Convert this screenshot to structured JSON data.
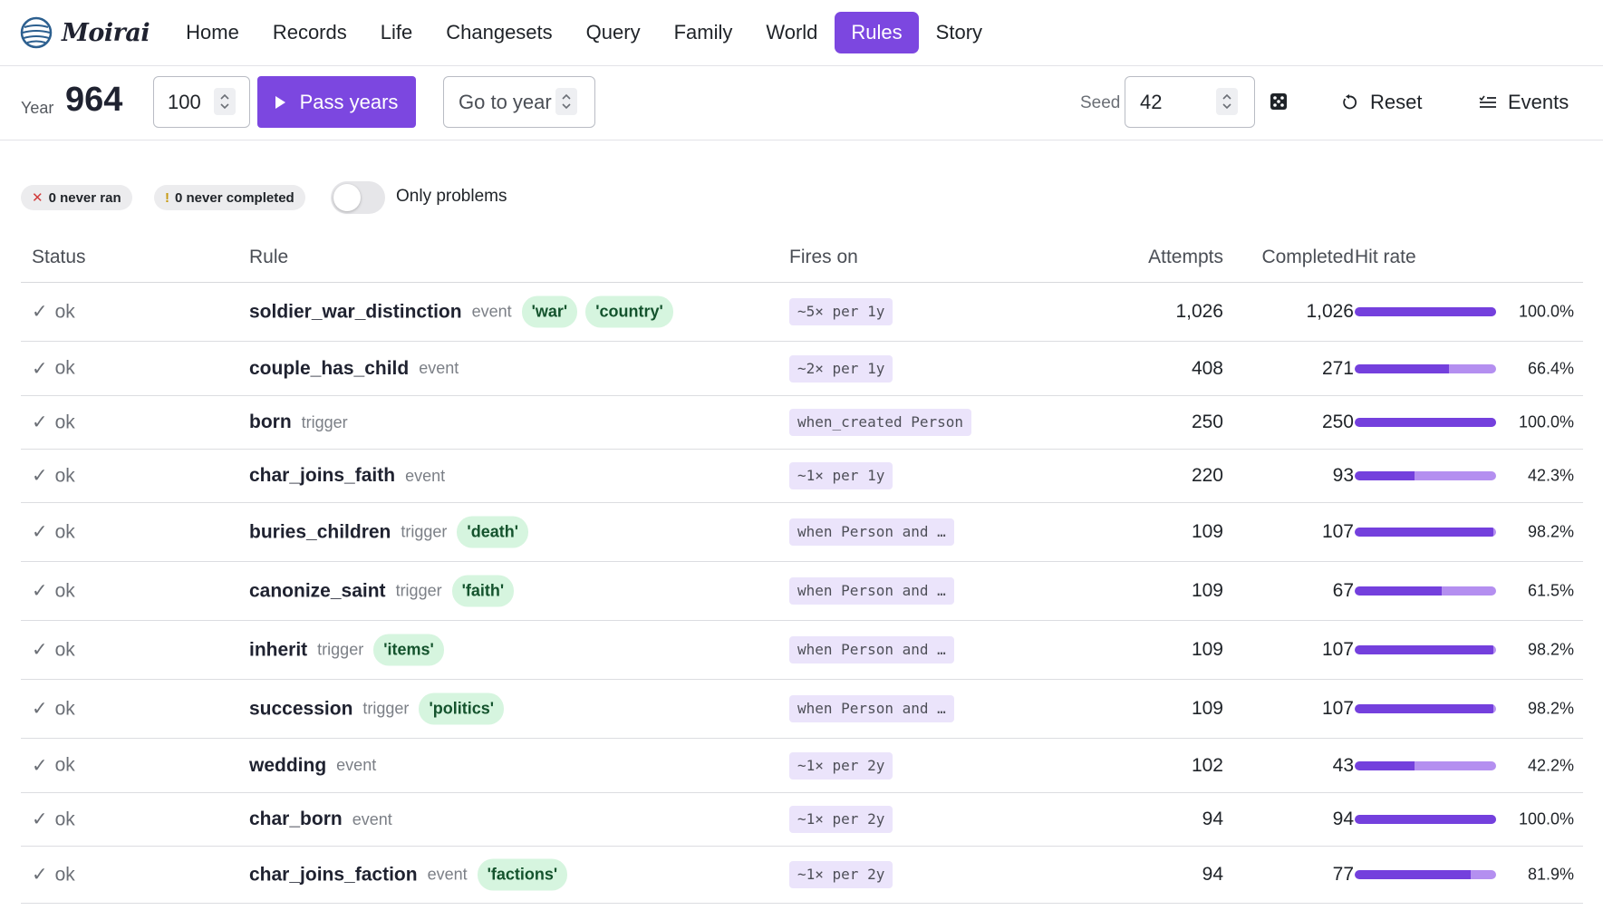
{
  "app": {
    "name": "Moirai"
  },
  "nav": {
    "items": [
      {
        "label": "Home"
      },
      {
        "label": "Records"
      },
      {
        "label": "Life"
      },
      {
        "label": "Changesets"
      },
      {
        "label": "Query"
      },
      {
        "label": "Family"
      },
      {
        "label": "World"
      },
      {
        "label": "Rules",
        "active": true
      },
      {
        "label": "Story"
      }
    ]
  },
  "controls": {
    "year_label": "Year",
    "year_value": "964",
    "years_to_pass": "100",
    "pass_button": "Pass years",
    "goto_placeholder": "Go to year",
    "seed_label": "Seed",
    "seed_value": "42",
    "dice_icon": "dice-icon",
    "reset_label": "Reset",
    "events_label": "Events"
  },
  "filters": {
    "never_ran": "0 never ran",
    "never_completed": "0 never completed",
    "only_problems_label": "Only problems",
    "only_problems_on": false
  },
  "table": {
    "headers": {
      "status": "Status",
      "rule": "Rule",
      "fires_on": "Fires on",
      "attempts": "Attempts",
      "completed": "Completed",
      "hit_rate": "Hit rate"
    },
    "rows": [
      {
        "status": "ok",
        "name": "soldier_war_distinction",
        "kind": "event",
        "tags": [
          "'war'",
          "'country'"
        ],
        "fires_on": "~5× per 1y",
        "attempts": "1,026",
        "completed": "1,026",
        "hit_rate": 1.0,
        "hit_rate_label": "100.0%"
      },
      {
        "status": "ok",
        "name": "couple_has_child",
        "kind": "event",
        "tags": [],
        "fires_on": "~2× per 1y",
        "attempts": "408",
        "completed": "271",
        "hit_rate": 0.664,
        "hit_rate_label": "66.4%"
      },
      {
        "status": "ok",
        "name": "born",
        "kind": "trigger",
        "tags": [],
        "fires_on": "when_created Person",
        "attempts": "250",
        "completed": "250",
        "hit_rate": 1.0,
        "hit_rate_label": "100.0%"
      },
      {
        "status": "ok",
        "name": "char_joins_faith",
        "kind": "event",
        "tags": [],
        "fires_on": "~1× per 1y",
        "attempts": "220",
        "completed": "93",
        "hit_rate": 0.423,
        "hit_rate_label": "42.3%"
      },
      {
        "status": "ok",
        "name": "buries_children",
        "kind": "trigger",
        "tags": [
          "'death'"
        ],
        "fires_on": "when Person and …",
        "attempts": "109",
        "completed": "107",
        "hit_rate": 0.982,
        "hit_rate_label": "98.2%"
      },
      {
        "status": "ok",
        "name": "canonize_saint",
        "kind": "trigger",
        "tags": [
          "'faith'"
        ],
        "fires_on": "when Person and …",
        "attempts": "109",
        "completed": "67",
        "hit_rate": 0.615,
        "hit_rate_label": "61.5%"
      },
      {
        "status": "ok",
        "name": "inherit",
        "kind": "trigger",
        "tags": [
          "'items'"
        ],
        "fires_on": "when Person and …",
        "attempts": "109",
        "completed": "107",
        "hit_rate": 0.982,
        "hit_rate_label": "98.2%"
      },
      {
        "status": "ok",
        "name": "succession",
        "kind": "trigger",
        "tags": [
          "'politics'"
        ],
        "fires_on": "when Person and …",
        "attempts": "109",
        "completed": "107",
        "hit_rate": 0.982,
        "hit_rate_label": "98.2%"
      },
      {
        "status": "ok",
        "name": "wedding",
        "kind": "event",
        "tags": [],
        "fires_on": "~1× per 2y",
        "attempts": "102",
        "completed": "43",
        "hit_rate": 0.422,
        "hit_rate_label": "42.2%"
      },
      {
        "status": "ok",
        "name": "char_born",
        "kind": "event",
        "tags": [],
        "fires_on": "~1× per 2y",
        "attempts": "94",
        "completed": "94",
        "hit_rate": 1.0,
        "hit_rate_label": "100.0%"
      },
      {
        "status": "ok",
        "name": "char_joins_faction",
        "kind": "event",
        "tags": [
          "'factions'"
        ],
        "fires_on": "~1× per 2y",
        "attempts": "94",
        "completed": "77",
        "hit_rate": 0.819,
        "hit_rate_label": "81.9%"
      }
    ]
  }
}
